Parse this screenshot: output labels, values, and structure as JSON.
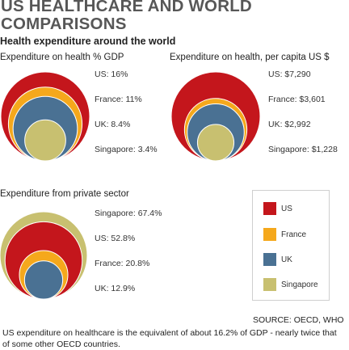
{
  "title": "US HEALTHCARE AND WORLD COMPARISONS",
  "subtitle": "Health expenditure around the world",
  "colors": {
    "US": "#c4161c",
    "France": "#f5a81c",
    "UK": "#4a7193",
    "Singapore": "#c8c070"
  },
  "legend": [
    "US",
    "France",
    "UK",
    "Singapore"
  ],
  "source": "SOURCE: OECD, WHO",
  "caption": "US expenditure on healthcare is the equivalent of about 16.2% of GDP - nearly twice that of some other OECD countries.",
  "chart_data": [
    {
      "type": "nested-circles",
      "title": "Expenditure on health % GDP",
      "series": [
        {
          "name": "US",
          "value": 16,
          "label": "US: 16%"
        },
        {
          "name": "France",
          "value": 11,
          "label": "France: 11%"
        },
        {
          "name": "UK",
          "value": 8.4,
          "label": "UK: 8.4%"
        },
        {
          "name": "Singapore",
          "value": 3.4,
          "label": "Singapore: 3.4%"
        }
      ]
    },
    {
      "type": "nested-circles",
      "title": "Expenditure on health, per capita US $",
      "series": [
        {
          "name": "US",
          "value": 7290,
          "label": "US: $7,290"
        },
        {
          "name": "France",
          "value": 3601,
          "label": "France: $3,601"
        },
        {
          "name": "UK",
          "value": 2992,
          "label": "UK: $2,992"
        },
        {
          "name": "Singapore",
          "value": 1228,
          "label": "Singapore: $1,228"
        }
      ]
    },
    {
      "type": "nested-circles",
      "title": "Expenditure from private sector",
      "series": [
        {
          "name": "Singapore",
          "value": 67.4,
          "label": "Singapore: 67.4%"
        },
        {
          "name": "US",
          "value": 52.8,
          "label": "US: 52.8%"
        },
        {
          "name": "France",
          "value": 20.8,
          "label": "France: 20.8%"
        },
        {
          "name": "UK",
          "value": 12.9,
          "label": "UK: 12.9%"
        }
      ]
    }
  ]
}
